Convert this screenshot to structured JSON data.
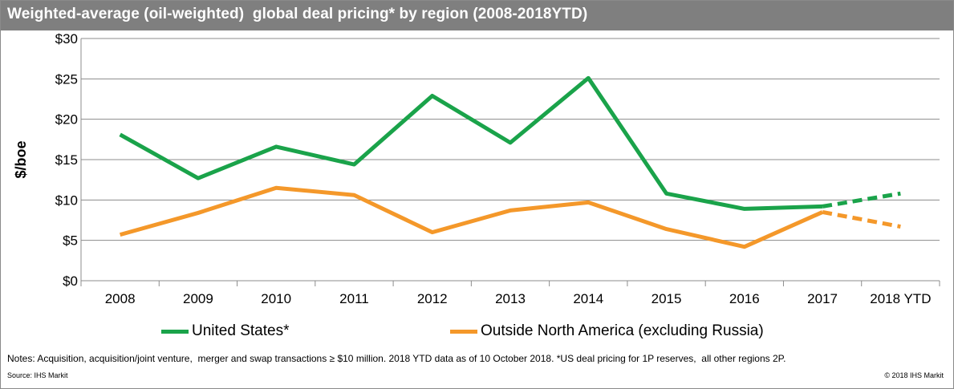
{
  "title": "Weighted-average (oil-weighted)  global deal pricing* by region (2008-2018YTD)",
  "notes": "Notes: Acquisition, acquisition/joint venture,  merger and swap transactions ≥ $10 million. 2018 YTD data as of 10 October 2018. *US deal pricing for 1P reserves,  all other regions 2P.",
  "source": "Source: IHS  Markit",
  "copyright": "© 2018 IHS  Markit",
  "chart_data": {
    "type": "line",
    "title": "Weighted-average (oil-weighted)  global deal pricing* by region (2008-2018YTD)",
    "xlabel": "",
    "ylabel": "$/boe",
    "categories": [
      "2008",
      "2009",
      "2010",
      "2011",
      "2012",
      "2013",
      "2014",
      "2015",
      "2016",
      "2017",
      "2018 YTD"
    ],
    "ylim": [
      0,
      30
    ],
    "yticks": [
      0,
      5,
      10,
      15,
      20,
      25,
      30
    ],
    "ytick_labels": [
      "$0",
      "$5",
      "$10",
      "$15",
      "$20",
      "$25",
      "$30"
    ],
    "grid": true,
    "legend_position": "bottom",
    "series": [
      {
        "name": "United States*",
        "color": "#1aa34a",
        "values": [
          18.1,
          12.7,
          16.6,
          14.4,
          22.9,
          17.1,
          25.1,
          10.8,
          8.9,
          9.2,
          10.8
        ],
        "dashed_last_segment": true
      },
      {
        "name": "Outside North America (excluding Russia)",
        "color": "#f4982a",
        "values": [
          5.7,
          8.4,
          11.5,
          10.6,
          6.0,
          8.7,
          9.7,
          6.4,
          4.2,
          8.5,
          6.7
        ],
        "dashed_last_segment": true
      }
    ]
  }
}
